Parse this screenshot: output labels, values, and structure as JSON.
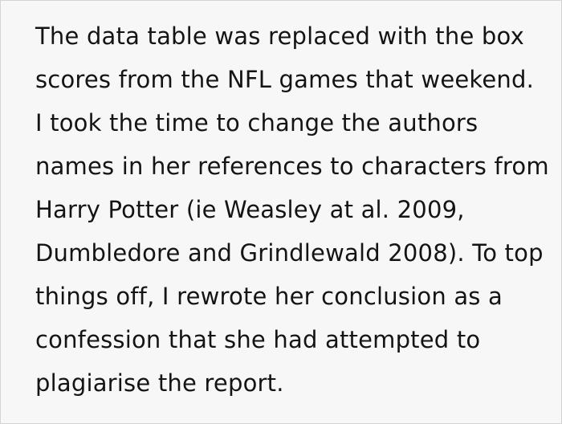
{
  "story": {
    "full_text": "The data table was replaced with the box scores from the NFL games that weekend. I took the time to change the authors names in her references to characters from Harry Potter (ie Weasley at al. 2009, Dumbledore and Grindlewald 2008). To top things off, I rewrote her conclusion as a confession that she had attempted to plagiarise the report.",
    "lines": [
      "The data table was replaced with the box",
      "scores from the NFL games that weekend.",
      "I took the time to change the authors",
      "names in her references to characters from",
      "Harry Potter (ie Weasley at al. 2009,",
      "Dumbledore and Grindlewald 2008). To top",
      "things off, I rewrote her conclusion as a",
      "confession that she had attempted to",
      "plagiarise the report."
    ]
  },
  "colors": {
    "background": "#f7f7f7",
    "border": "#d4d4d4",
    "text": "#141414"
  }
}
